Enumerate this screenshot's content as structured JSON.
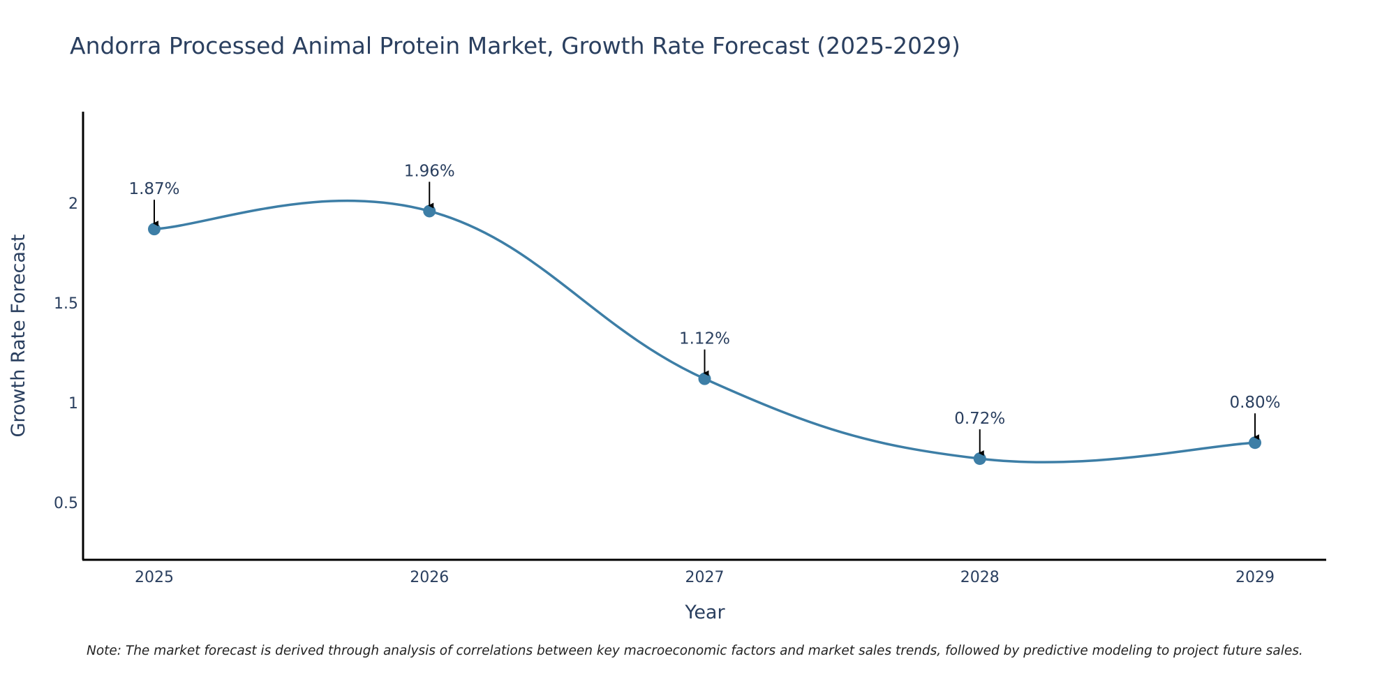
{
  "chart_data": {
    "type": "line",
    "title": "Andorra Processed Animal Protein Market, Growth Rate Forecast (2025-2029)",
    "xlabel": "Year",
    "ylabel": "Growth Rate Forecast",
    "x": [
      "2025",
      "2026",
      "2027",
      "2028",
      "2029"
    ],
    "series": [
      {
        "name": "Growth Rate Forecast",
        "values": [
          1.87,
          1.96,
          1.12,
          0.72,
          0.8
        ],
        "labels": [
          "1.87%",
          "1.96%",
          "1.12%",
          "0.72%",
          "0.80%"
        ],
        "color": "#3d7ea6",
        "line_shape": "spline",
        "markers": true
      }
    ],
    "y_ticks": [
      "0.5",
      "1",
      "1.5",
      "2"
    ],
    "y_tick_values": [
      0.5,
      1,
      1.5,
      2
    ],
    "ylim": [
      0.21,
      2.46
    ],
    "grid": false,
    "legend": "none",
    "annotations": "arrow above each point with percent label"
  },
  "note": "Note: The market forecast is derived through analysis of correlations between key macroeconomic factors and market sales trends, followed by predictive modeling to project future sales."
}
